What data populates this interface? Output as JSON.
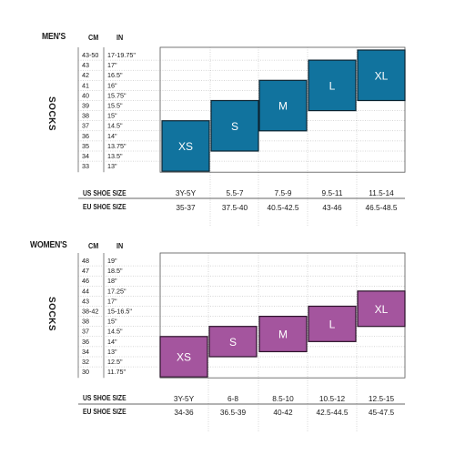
{
  "chart_data": [
    {
      "type": "table",
      "title": "MEN'S",
      "side_label": "SOCKS",
      "col_headers": {
        "cm": "CM",
        "in": "IN"
      },
      "rows": [
        {
          "cm": "43-50",
          "in": "17-19.75\""
        },
        {
          "cm": "43",
          "in": "17\""
        },
        {
          "cm": "42",
          "in": "16.5\""
        },
        {
          "cm": "41",
          "in": "16\""
        },
        {
          "cm": "40",
          "in": "15.75\""
        },
        {
          "cm": "39",
          "in": "15.5\""
        },
        {
          "cm": "38",
          "in": "15\""
        },
        {
          "cm": "37",
          "in": "14.5\""
        },
        {
          "cm": "36",
          "in": "14\""
        },
        {
          "cm": "35",
          "in": "13.75\""
        },
        {
          "cm": "34",
          "in": "13.5\""
        },
        {
          "cm": "33",
          "in": "13\""
        }
      ],
      "sizes": [
        {
          "label": "XS",
          "us": "3Y-5Y",
          "eu": "35-37",
          "row_min": 0,
          "row_max": 5
        },
        {
          "label": "S",
          "us": "5.5-7",
          "eu": "37.5-40",
          "row_min": 2,
          "row_max": 7
        },
        {
          "label": "M",
          "us": "7.5-9",
          "eu": "40.5-42.5",
          "row_min": 4,
          "row_max": 9
        },
        {
          "label": "L",
          "us": "9.5-11",
          "eu": "43-46",
          "row_min": 6,
          "row_max": 11
        },
        {
          "label": "XL",
          "us": "11.5-14",
          "eu": "46.5-48.5",
          "row_min": 7,
          "row_max": 12
        }
      ],
      "us_label": "US SHOE SIZE",
      "eu_label": "EU SHOE SIZE",
      "color": "#11739e",
      "border": "#0c2330"
    },
    {
      "type": "table",
      "title": "WOMEN'S",
      "side_label": "SOCKS",
      "col_headers": {
        "cm": "CM",
        "in": "IN"
      },
      "rows": [
        {
          "cm": "48",
          "in": "19\""
        },
        {
          "cm": "47",
          "in": "18.5\""
        },
        {
          "cm": "46",
          "in": "18\""
        },
        {
          "cm": "44",
          "in": "17.25\""
        },
        {
          "cm": "43",
          "in": "17\""
        },
        {
          "cm": "38-42",
          "in": "15-16.5\""
        },
        {
          "cm": "38",
          "in": "15\""
        },
        {
          "cm": "37",
          "in": "14.5\""
        },
        {
          "cm": "36",
          "in": "14\""
        },
        {
          "cm": "34",
          "in": "13\""
        },
        {
          "cm": "32",
          "in": "12.5\""
        },
        {
          "cm": "30",
          "in": "11.75\""
        }
      ],
      "sizes": [
        {
          "label": "XS",
          "us": "3Y-5Y",
          "eu": "34-36",
          "row_min": 0,
          "row_max": 4
        },
        {
          "label": "S",
          "us": "6-8",
          "eu": "36.5-39",
          "row_min": 2,
          "row_max": 5
        },
        {
          "label": "M",
          "us": "8.5-10",
          "eu": "40-42",
          "row_min": 2.5,
          "row_max": 6
        },
        {
          "label": "L",
          "us": "10.5-12",
          "eu": "42.5-44.5",
          "row_min": 3.5,
          "row_max": 7
        },
        {
          "label": "XL",
          "us": "12.5-15",
          "eu": "45-47.5",
          "row_min": 5,
          "row_max": 8.5
        }
      ],
      "us_label": "US SHOE SIZE",
      "eu_label": "EU SHOE SIZE",
      "color": "#a4559e",
      "border": "#2a1228"
    }
  ]
}
